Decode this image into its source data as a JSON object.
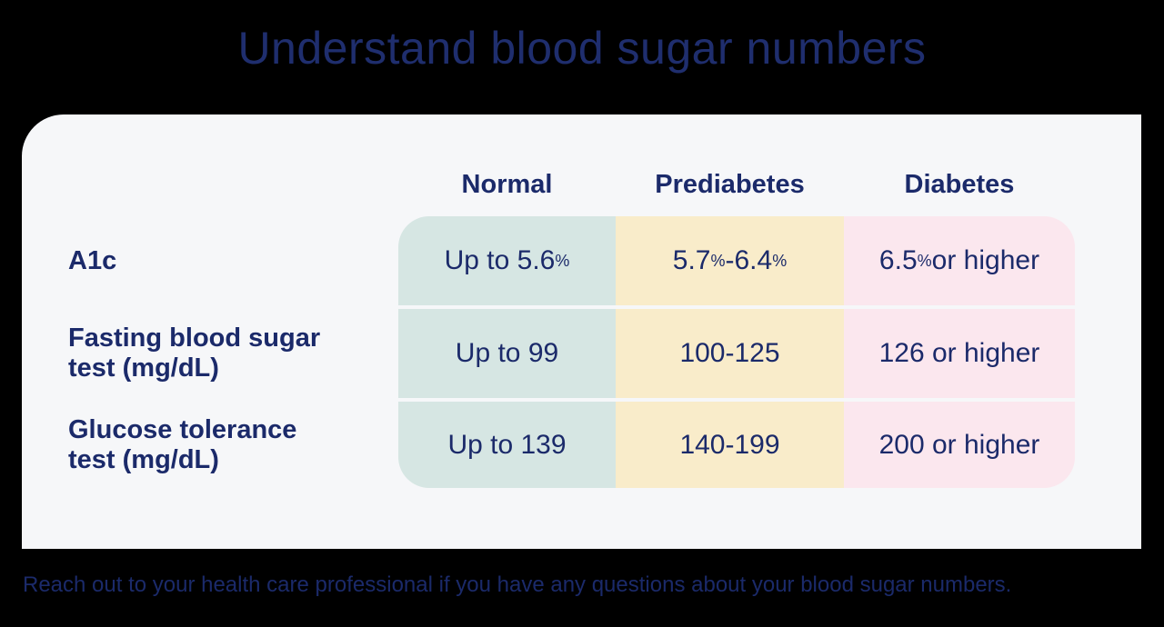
{
  "title": "Understand blood sugar numbers",
  "footer": "Reach out to your health care professional if you have any questions about your blood sugar numbers.",
  "colors": {
    "navy": "#1b2a6a",
    "title_navy": "#1f2e6e",
    "card_bg": "#f6f7f9",
    "normal_bg": "#d6e6e3",
    "prediabetes_bg": "#f9ecca",
    "diabetes_bg": "#fbe7ee",
    "page_bg": "#000000"
  },
  "table": {
    "headers": [
      "Normal",
      "Prediabetes",
      "Diabetes"
    ],
    "rows": [
      {
        "label_lines": [
          "A1c"
        ],
        "cells": [
          [
            {
              "t": "Up to 5.6"
            },
            {
              "sup": "%"
            }
          ],
          [
            {
              "t": "5.7"
            },
            {
              "sup": "%"
            },
            {
              "t": "-6.4"
            },
            {
              "sup": "%"
            }
          ],
          [
            {
              "t": "6.5"
            },
            {
              "sup": "%"
            },
            {
              "t": " or higher"
            }
          ]
        ]
      },
      {
        "label_lines": [
          "Fasting blood sugar",
          "test (mg/dL)"
        ],
        "cells": [
          [
            {
              "t": "Up to 99"
            }
          ],
          [
            {
              "t": "100-125"
            }
          ],
          [
            {
              "t": "126 or higher"
            }
          ]
        ]
      },
      {
        "label_lines": [
          "Glucose tolerance",
          "test (mg/dL)"
        ],
        "cells": [
          [
            {
              "t": "Up to 139"
            }
          ],
          [
            {
              "t": "140-199"
            }
          ],
          [
            {
              "t": "200 or higher"
            }
          ]
        ]
      }
    ]
  }
}
